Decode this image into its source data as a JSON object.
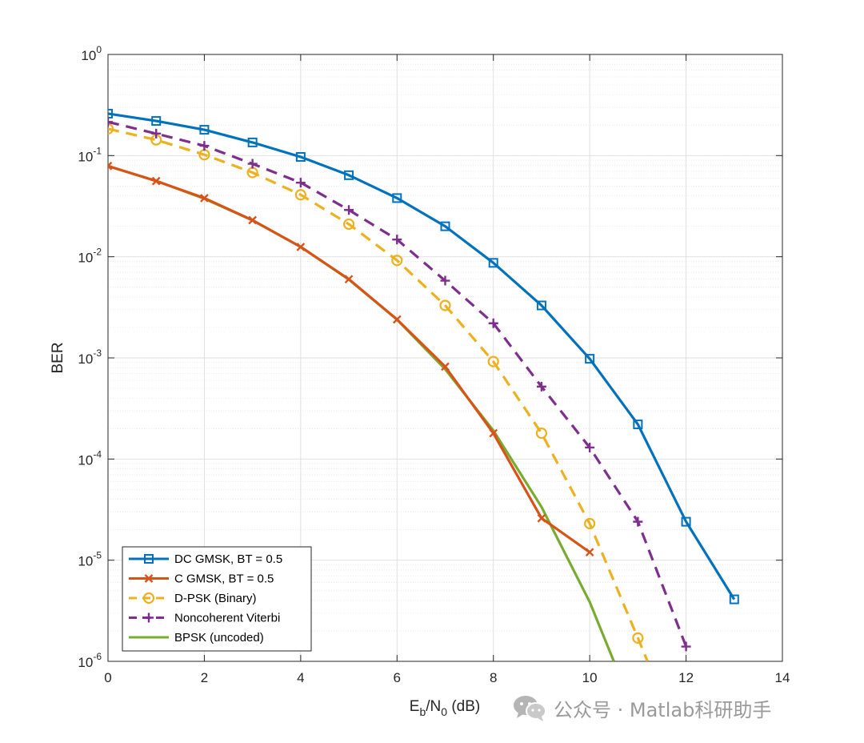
{
  "chart_data": {
    "type": "line",
    "xlabel": {
      "base": "E",
      "sub1": "b",
      "mid": "/N",
      "sub2": "0",
      "tail": " (dB)"
    },
    "ylabel": "BER",
    "xlim": [
      0,
      14
    ],
    "ylim": [
      1e-06,
      1
    ],
    "yscale": "log",
    "grid": true,
    "legend_position": "bottom-left",
    "xticks": [
      0,
      2,
      4,
      6,
      8,
      10,
      12,
      14
    ],
    "yticks": [
      {
        "value": 1,
        "base": "10",
        "exp": "0"
      },
      {
        "value": 0.1,
        "base": "10",
        "exp": "-1"
      },
      {
        "value": 0.01,
        "base": "10",
        "exp": "-2"
      },
      {
        "value": 0.001,
        "base": "10",
        "exp": "-3"
      },
      {
        "value": 0.0001,
        "base": "10",
        "exp": "-4"
      },
      {
        "value": 1e-05,
        "base": "10",
        "exp": "-5"
      },
      {
        "value": 1e-06,
        "base": "10",
        "exp": "-6"
      }
    ],
    "series": [
      {
        "name": "DC GMSK, BT = 0.5",
        "color": "#0072BD",
        "dash": "solid",
        "marker": "square",
        "x": [
          0,
          1,
          2,
          3,
          4,
          5,
          6,
          7,
          8,
          9,
          10,
          11,
          12,
          13
        ],
        "y": [
          0.26,
          0.22,
          0.18,
          0.135,
          0.097,
          0.064,
          0.038,
          0.02,
          0.0087,
          0.0033,
          0.00098,
          0.00022,
          2.4e-05,
          4.1e-06
        ]
      },
      {
        "name": "C GMSK, BT = 0.5",
        "color": "#D95319",
        "dash": "solid",
        "marker": "x",
        "x": [
          0,
          1,
          2,
          3,
          4,
          5,
          6,
          7,
          8,
          9,
          10
        ],
        "y": [
          0.079,
          0.056,
          0.038,
          0.023,
          0.0125,
          0.006,
          0.0024,
          0.00082,
          0.00018,
          2.6e-05,
          1.2e-05
        ]
      },
      {
        "name": "D-PSK (Binary)",
        "color": "#EDB120",
        "dash": "dashed",
        "marker": "circle",
        "x": [
          0,
          1,
          2,
          3,
          4,
          5,
          6,
          7,
          8,
          9,
          10,
          11,
          11.2
        ],
        "y": [
          0.184,
          0.143,
          0.102,
          0.068,
          0.041,
          0.021,
          0.0092,
          0.0033,
          0.00092,
          0.00018,
          2.3e-05,
          1.7e-06,
          1e-06
        ]
      },
      {
        "name": "Noncoherent Viterbi",
        "color": "#7E2F8E",
        "dash": "dashed",
        "marker": "plus",
        "x": [
          0,
          1,
          2,
          3,
          4,
          5,
          6,
          7,
          8,
          9,
          10,
          11,
          12
        ],
        "y": [
          0.215,
          0.165,
          0.125,
          0.083,
          0.054,
          0.029,
          0.0148,
          0.0058,
          0.0022,
          0.00052,
          0.00013,
          2.4e-05,
          1.4e-06
        ]
      },
      {
        "name": "BPSK (uncoded)",
        "color": "#77AC30",
        "dash": "solid",
        "marker": "none",
        "x": [
          0,
          1,
          2,
          3,
          4,
          5,
          6,
          7,
          8,
          9,
          10,
          10.5
        ],
        "y": [
          0.0786,
          0.0563,
          0.0375,
          0.0229,
          0.0125,
          0.00595,
          0.00239,
          0.000773,
          0.000191,
          3.36e-05,
          3.87e-06,
          1e-06
        ]
      }
    ]
  },
  "watermark": {
    "text": "公众号 · Matlab科研助手",
    "icon": "wechat-icon"
  }
}
